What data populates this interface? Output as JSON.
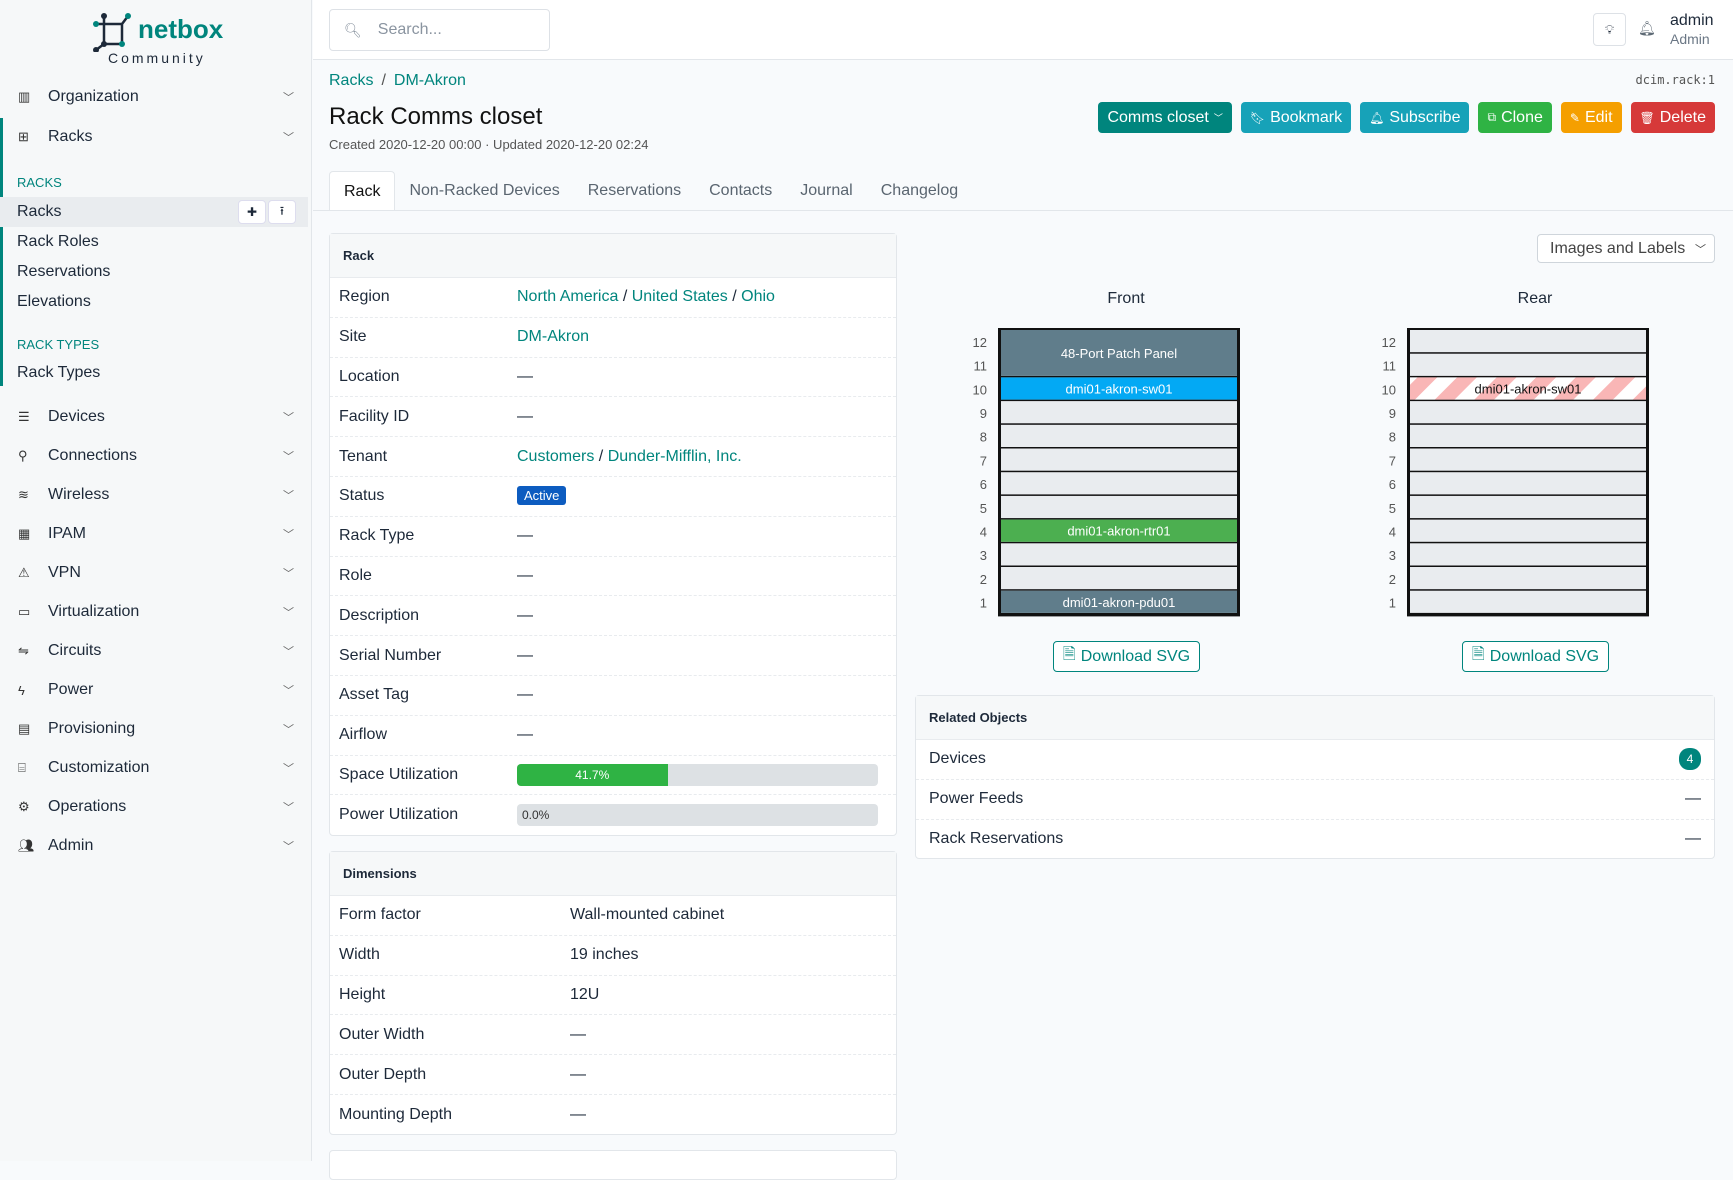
{
  "brand": {
    "name": "netbox",
    "edition": "Community",
    "accent": "#00857d"
  },
  "sidebar": {
    "top": [
      {
        "label": "Organization",
        "icon": "building-icon"
      },
      {
        "label": "Racks",
        "icon": "rack-icon"
      }
    ],
    "sections": [
      {
        "title": "RACKS",
        "items": [
          "Racks",
          "Rack Roles",
          "Reservations",
          "Elevations"
        ]
      },
      {
        "title": "RACK TYPES",
        "items": [
          "Rack Types"
        ]
      }
    ],
    "menu": [
      {
        "label": "Devices",
        "icon": "server-icon"
      },
      {
        "label": "Connections",
        "icon": "plug-icon"
      },
      {
        "label": "Wireless",
        "icon": "wifi-icon"
      },
      {
        "label": "IPAM",
        "icon": "ip-icon"
      },
      {
        "label": "VPN",
        "icon": "vpn-icon"
      },
      {
        "label": "Virtualization",
        "icon": "monitor-icon"
      },
      {
        "label": "Circuits",
        "icon": "circuit-icon"
      },
      {
        "label": "Power",
        "icon": "bolt-icon"
      },
      {
        "label": "Provisioning",
        "icon": "file-icon"
      },
      {
        "label": "Customization",
        "icon": "toolbox-icon"
      },
      {
        "label": "Operations",
        "icon": "cogs-icon"
      },
      {
        "label": "Admin",
        "icon": "users-icon"
      }
    ]
  },
  "topbar": {
    "search_placeholder": "Search...",
    "user": "admin",
    "role": "Admin"
  },
  "breadcrumb": [
    "Racks",
    "DM-Akron"
  ],
  "page": {
    "title": "Rack Comms closet",
    "meta": "Created 2020-12-20 00:00 · Updated 2020-12-20 02:24",
    "identifier": "dcim.rack:1"
  },
  "buttons": [
    {
      "label": "Comms closet",
      "color": "#00857d",
      "icon": "chevron-down-icon"
    },
    {
      "label": "Bookmark",
      "color": "#17a2b8",
      "icon": "bookmark-icon"
    },
    {
      "label": "Subscribe",
      "color": "#17a2b8",
      "icon": "bell-plus-icon"
    },
    {
      "label": "Clone",
      "color": "#2fb344",
      "icon": "copy-icon"
    },
    {
      "label": "Edit",
      "color": "#f59f00",
      "icon": "pencil-icon"
    },
    {
      "label": "Delete",
      "color": "#d63939",
      "icon": "trash-icon"
    }
  ],
  "tabs": [
    "Rack",
    "Non-Racked Devices",
    "Reservations",
    "Contacts",
    "Journal",
    "Changelog"
  ],
  "rack_card": {
    "title": "Rack",
    "region": [
      "North America",
      "United States",
      "Ohio"
    ],
    "site": "DM-Akron",
    "tenant": [
      "Customers",
      "Dunder-Mifflin, Inc."
    ],
    "status": "Active",
    "labels": {
      "region": "Region",
      "site": "Site",
      "location": "Location",
      "facility": "Facility ID",
      "tenant": "Tenant",
      "status": "Status",
      "rack_type": "Rack Type",
      "role": "Role",
      "description": "Description",
      "serial": "Serial Number",
      "asset": "Asset Tag",
      "airflow": "Airflow",
      "space": "Space Utilization",
      "power": "Power Utilization"
    },
    "dash": "—",
    "space_utilization": 41.7,
    "space_text": "41.7%",
    "power_utilization": 0.0,
    "power_text": "0.0%"
  },
  "dimensions": {
    "title": "Dimensions",
    "rows": [
      {
        "k": "Form factor",
        "v": "Wall-mounted cabinet"
      },
      {
        "k": "Width",
        "v": "19 inches"
      },
      {
        "k": "Height",
        "v": "12U"
      },
      {
        "k": "Outer Width",
        "v": "—"
      },
      {
        "k": "Outer Depth",
        "v": "—"
      },
      {
        "k": "Mounting Depth",
        "v": "—"
      }
    ]
  },
  "elevation": {
    "view": "Images and Labels",
    "units": [
      12,
      11,
      10,
      9,
      8,
      7,
      6,
      5,
      4,
      3,
      2,
      1
    ],
    "faces": [
      {
        "label": "Front",
        "devices": [
          {
            "name": "48-Port Patch Panel",
            "top": 12,
            "height": 2,
            "color": "#607d8b"
          },
          {
            "name": "dmi01-akron-sw01",
            "top": 10,
            "height": 1,
            "color": "#03a9f4"
          },
          {
            "name": "dmi01-akron-rtr01",
            "top": 4,
            "height": 1,
            "color": "#4caf50"
          },
          {
            "name": "dmi01-akron-pdu01",
            "top": 1,
            "height": 1,
            "color": "#607d8b"
          }
        ]
      },
      {
        "label": "Rear",
        "devices": [
          {
            "name": "dmi01-akron-sw01",
            "top": 10,
            "height": 1,
            "color": "hatched"
          }
        ]
      }
    ],
    "download_label": "Download SVG"
  },
  "related": {
    "title": "Related Objects",
    "rows": [
      {
        "label": "Devices",
        "count": "4"
      },
      {
        "label": "Power Feeds",
        "count": "—"
      },
      {
        "label": "Rack Reservations",
        "count": "—"
      }
    ]
  }
}
